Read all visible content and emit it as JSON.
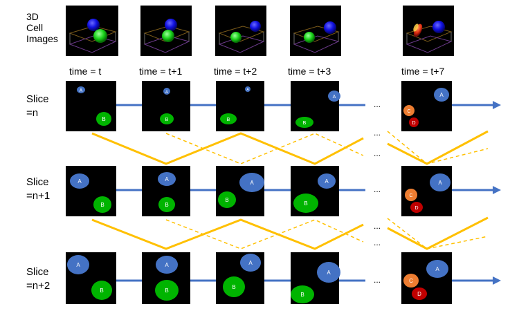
{
  "header": {
    "images_label_lines": [
      "3D",
      "Cell",
      "Images"
    ]
  },
  "time_labels": [
    "time = t",
    "time = t+1",
    "time = t+2",
    "time = t+3",
    "time = t+7"
  ],
  "row_labels": [
    [
      "Slice",
      "=n"
    ],
    [
      "Slice",
      "=n+1"
    ],
    [
      "Slice",
      "=n+2"
    ]
  ],
  "ellipsis": "...",
  "colors": {
    "blue_cell": "#4472c4",
    "green_cell": "#00b400",
    "orange_cell": "#ed7d31",
    "red_cell": "#c00000",
    "track_line": "#4472c4",
    "link_line": "#ffc000",
    "panel_bg": "#000000"
  },
  "cell_labels": {
    "a": "A",
    "b": "B",
    "c": "C",
    "d": "D"
  },
  "icons": [
    "3d-cell-render-icon",
    "arrow-right-icon"
  ]
}
